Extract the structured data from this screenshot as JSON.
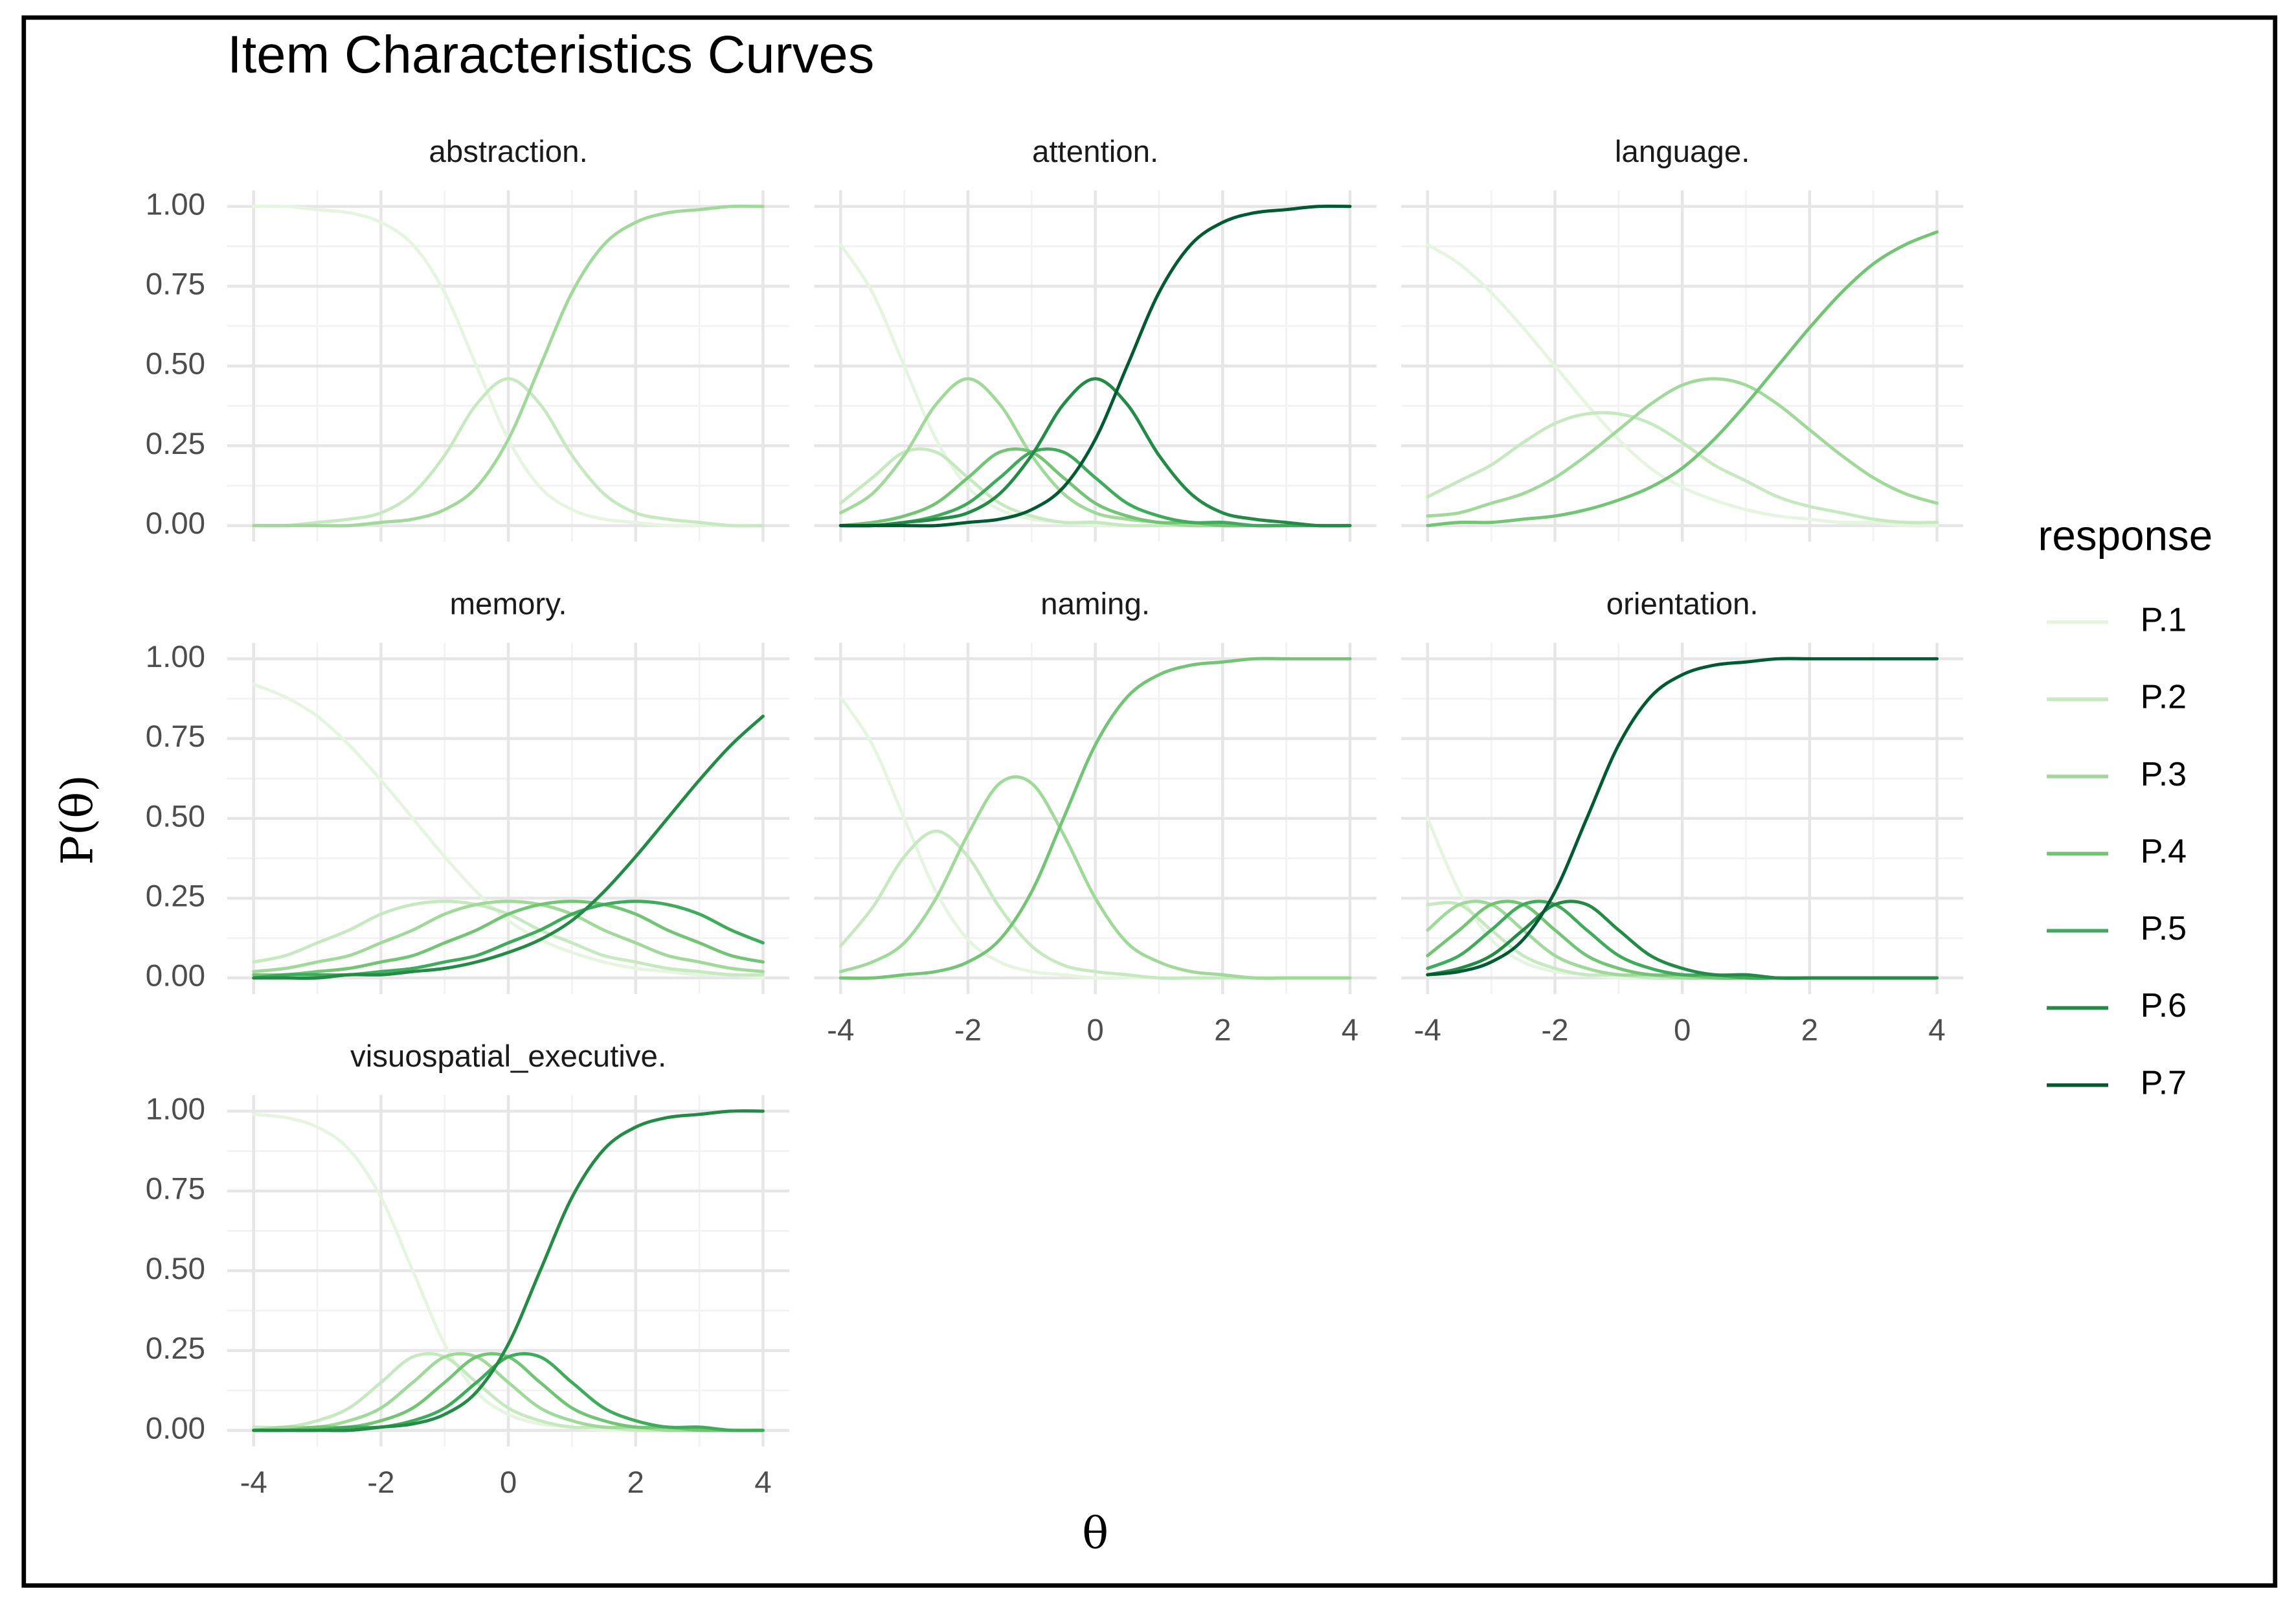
{
  "chart_data": {
    "type": "line",
    "title": "Item Characteristics Curves",
    "x_label": "θ",
    "y_label": "P(θ)",
    "legend_title": "response",
    "grid": true,
    "x": [
      -4,
      -3.5,
      -3,
      -2.5,
      -2,
      -1.5,
      -1,
      -0.5,
      0,
      0.5,
      1,
      1.5,
      2,
      2.5,
      3,
      3.5,
      4
    ],
    "xlim": [
      -4,
      4
    ],
    "xticks": [
      -4,
      -2,
      0,
      2,
      4
    ],
    "ylim": [
      0,
      1
    ],
    "yticks": [
      {
        "value": 0,
        "label": "0.00"
      },
      {
        "value": 0.25,
        "label": "0.25"
      },
      {
        "value": 0.5,
        "label": "0.50"
      },
      {
        "value": 0.75,
        "label": "0.75"
      },
      {
        "value": 1,
        "label": "1.00"
      }
    ],
    "panels": [
      {
        "title": "abstraction.",
        "series": [
          {
            "name": "P.1",
            "color": "#e5f5e0",
            "values": [
              1,
              1,
              0.99,
              0.98,
              0.95,
              0.88,
              0.73,
              0.5,
              0.27,
              0.12,
              0.05,
              0.02,
              0.01,
              0,
              0,
              0,
              0
            ]
          },
          {
            "name": "P.2",
            "color": "#c7e9c0",
            "values": [
              0,
              0,
              0.01,
              0.02,
              0.04,
              0.1,
              0.22,
              0.38,
              0.46,
              0.38,
              0.22,
              0.1,
              0.04,
              0.02,
              0.01,
              0,
              0
            ]
          },
          {
            "name": "P.3",
            "color": "#a1d99b",
            "values": [
              0,
              0,
              0,
              0,
              0.01,
              0.02,
              0.05,
              0.12,
              0.27,
              0.5,
              0.73,
              0.88,
              0.95,
              0.98,
              0.99,
              1,
              1
            ]
          }
        ]
      },
      {
        "title": "attention.",
        "series": [
          {
            "name": "P.1",
            "color": "#e5f5e0",
            "values": [
              0.88,
              0.73,
              0.5,
              0.27,
              0.12,
              0.05,
              0.02,
              0.01,
              0,
              0,
              0,
              0,
              0,
              0,
              0,
              0,
              0
            ]
          },
          {
            "name": "P.2",
            "color": "#c7e9c0",
            "values": [
              0.07,
              0.15,
              0.23,
              0.23,
              0.15,
              0.07,
              0.03,
              0.01,
              0.01,
              0,
              0,
              0,
              0,
              0,
              0,
              0,
              0
            ]
          },
          {
            "name": "P.3",
            "color": "#a1d99b",
            "values": [
              0.04,
              0.1,
              0.22,
              0.38,
              0.46,
              0.38,
              0.22,
              0.1,
              0.04,
              0.02,
              0.01,
              0,
              0,
              0,
              0,
              0,
              0
            ]
          },
          {
            "name": "P.4",
            "color": "#74c476",
            "values": [
              0,
              0.01,
              0.03,
              0.07,
              0.15,
              0.23,
              0.23,
              0.15,
              0.07,
              0.03,
              0.01,
              0.01,
              0,
              0,
              0,
              0,
              0
            ]
          },
          {
            "name": "P.5",
            "color": "#41ab5d",
            "values": [
              0,
              0,
              0.01,
              0.03,
              0.07,
              0.15,
              0.23,
              0.23,
              0.15,
              0.07,
              0.03,
              0.01,
              0.01,
              0,
              0,
              0,
              0
            ]
          },
          {
            "name": "P.6",
            "color": "#238b45",
            "values": [
              0,
              0,
              0.01,
              0.02,
              0.04,
              0.1,
              0.22,
              0.38,
              0.46,
              0.38,
              0.22,
              0.1,
              0.04,
              0.02,
              0.01,
              0,
              0
            ]
          },
          {
            "name": "P.7",
            "color": "#005a32",
            "values": [
              0,
              0,
              0,
              0,
              0.01,
              0.02,
              0.05,
              0.12,
              0.27,
              0.5,
              0.73,
              0.88,
              0.95,
              0.98,
              0.99,
              1,
              1
            ]
          }
        ]
      },
      {
        "title": "language.",
        "series": [
          {
            "name": "P.1",
            "color": "#e5f5e0",
            "values": [
              0.88,
              0.82,
              0.73,
              0.62,
              0.5,
              0.38,
              0.27,
              0.18,
              0.12,
              0.08,
              0.05,
              0.03,
              0.02,
              0.01,
              0.01,
              0,
              0
            ]
          },
          {
            "name": "P.2",
            "color": "#c7e9c0",
            "values": [
              0.09,
              0.14,
              0.19,
              0.26,
              0.32,
              0.35,
              0.35,
              0.32,
              0.26,
              0.19,
              0.14,
              0.09,
              0.06,
              0.04,
              0.02,
              0.01,
              0.01
            ]
          },
          {
            "name": "P.3",
            "color": "#a1d99b",
            "values": [
              0.03,
              0.04,
              0.07,
              0.1,
              0.15,
              0.22,
              0.3,
              0.38,
              0.44,
              0.46,
              0.44,
              0.38,
              0.3,
              0.22,
              0.15,
              0.1,
              0.07
            ]
          },
          {
            "name": "P.4",
            "color": "#74c476",
            "values": [
              0,
              0.01,
              0.01,
              0.02,
              0.03,
              0.05,
              0.08,
              0.12,
              0.18,
              0.27,
              0.38,
              0.5,
              0.62,
              0.73,
              0.82,
              0.88,
              0.92
            ]
          }
        ]
      },
      {
        "title": "memory.",
        "series": [
          {
            "name": "P.1",
            "color": "#e5f5e0",
            "values": [
              0.92,
              0.88,
              0.82,
              0.73,
              0.62,
              0.5,
              0.38,
              0.27,
              0.18,
              0.12,
              0.08,
              0.05,
              0.03,
              0.02,
              0.01,
              0.01,
              0
            ]
          },
          {
            "name": "P.2",
            "color": "#c7e9c0",
            "values": [
              0.05,
              0.07,
              0.11,
              0.15,
              0.2,
              0.23,
              0.24,
              0.23,
              0.2,
              0.15,
              0.11,
              0.07,
              0.05,
              0.03,
              0.02,
              0.01,
              0.01
            ]
          },
          {
            "name": "P.3",
            "color": "#a1d99b",
            "values": [
              0.02,
              0.03,
              0.05,
              0.07,
              0.11,
              0.15,
              0.2,
              0.23,
              0.24,
              0.23,
              0.2,
              0.15,
              0.11,
              0.07,
              0.05,
              0.03,
              0.02
            ]
          },
          {
            "name": "P.4",
            "color": "#74c476",
            "values": [
              0.01,
              0.01,
              0.02,
              0.03,
              0.05,
              0.07,
              0.11,
              0.15,
              0.2,
              0.23,
              0.24,
              0.23,
              0.2,
              0.15,
              0.11,
              0.07,
              0.05
            ]
          },
          {
            "name": "P.5",
            "color": "#41ab5d",
            "values": [
              0,
              0.01,
              0.01,
              0.01,
              0.02,
              0.03,
              0.05,
              0.07,
              0.11,
              0.15,
              0.2,
              0.23,
              0.24,
              0.23,
              0.2,
              0.15,
              0.11
            ]
          },
          {
            "name": "P.6",
            "color": "#238b45",
            "values": [
              0,
              0,
              0,
              0.01,
              0.01,
              0.02,
              0.03,
              0.05,
              0.08,
              0.12,
              0.18,
              0.27,
              0.38,
              0.5,
              0.62,
              0.73,
              0.82
            ]
          }
        ]
      },
      {
        "title": "naming.",
        "series": [
          {
            "name": "P.1",
            "color": "#e5f5e0",
            "values": [
              0.88,
              0.73,
              0.5,
              0.27,
              0.12,
              0.05,
              0.02,
              0.01,
              0,
              0,
              0,
              0,
              0,
              0,
              0,
              0,
              0
            ]
          },
          {
            "name": "P.2",
            "color": "#c7e9c0",
            "values": [
              0.1,
              0.22,
              0.38,
              0.46,
              0.38,
              0.22,
              0.1,
              0.04,
              0.02,
              0.01,
              0,
              0,
              0,
              0,
              0,
              0,
              0
            ]
          },
          {
            "name": "P.3",
            "color": "#a1d99b",
            "values": [
              0.02,
              0.05,
              0.11,
              0.25,
              0.45,
              0.61,
              0.61,
              0.45,
              0.25,
              0.11,
              0.05,
              0.02,
              0.01,
              0,
              0,
              0,
              0
            ]
          },
          {
            "name": "P.4",
            "color": "#74c476",
            "values": [
              0,
              0,
              0.01,
              0.02,
              0.05,
              0.12,
              0.27,
              0.5,
              0.73,
              0.88,
              0.95,
              0.98,
              0.99,
              1,
              1,
              1,
              1
            ]
          }
        ]
      },
      {
        "title": "orientation.",
        "series": [
          {
            "name": "P.1",
            "color": "#e5f5e0",
            "values": [
              0.5,
              0.27,
              0.12,
              0.05,
              0.02,
              0.01,
              0,
              0,
              0,
              0,
              0,
              0,
              0,
              0,
              0,
              0,
              0
            ]
          },
          {
            "name": "P.2",
            "color": "#c7e9c0",
            "values": [
              0.23,
              0.23,
              0.15,
              0.07,
              0.03,
              0.01,
              0.01,
              0,
              0,
              0,
              0,
              0,
              0,
              0,
              0,
              0,
              0
            ]
          },
          {
            "name": "P.3",
            "color": "#a1d99b",
            "values": [
              0.15,
              0.23,
              0.23,
              0.15,
              0.07,
              0.03,
              0.01,
              0.01,
              0,
              0,
              0,
              0,
              0,
              0,
              0,
              0,
              0
            ]
          },
          {
            "name": "P.4",
            "color": "#74c476",
            "values": [
              0.07,
              0.15,
              0.23,
              0.23,
              0.15,
              0.07,
              0.03,
              0.01,
              0.01,
              0,
              0,
              0,
              0,
              0,
              0,
              0,
              0
            ]
          },
          {
            "name": "P.5",
            "color": "#41ab5d",
            "values": [
              0.03,
              0.07,
              0.15,
              0.23,
              0.23,
              0.15,
              0.07,
              0.03,
              0.01,
              0.01,
              0,
              0,
              0,
              0,
              0,
              0,
              0
            ]
          },
          {
            "name": "P.6",
            "color": "#238b45",
            "values": [
              0.01,
              0.03,
              0.07,
              0.15,
              0.23,
              0.23,
              0.15,
              0.07,
              0.03,
              0.01,
              0.01,
              0,
              0,
              0,
              0,
              0,
              0
            ]
          },
          {
            "name": "P.7",
            "color": "#005a32",
            "values": [
              0.01,
              0.02,
              0.05,
              0.12,
              0.27,
              0.5,
              0.73,
              0.88,
              0.95,
              0.98,
              0.99,
              1,
              1,
              1,
              1,
              1,
              1
            ]
          }
        ]
      },
      {
        "title": "visuospatial_executive.",
        "series": [
          {
            "name": "P.1",
            "color": "#e5f5e0",
            "values": [
              0.99,
              0.98,
              0.95,
              0.88,
              0.73,
              0.5,
              0.27,
              0.12,
              0.05,
              0.02,
              0.01,
              0,
              0,
              0,
              0,
              0,
              0
            ]
          },
          {
            "name": "P.2",
            "color": "#c7e9c0",
            "values": [
              0.01,
              0.01,
              0.03,
              0.07,
              0.15,
              0.23,
              0.23,
              0.15,
              0.07,
              0.03,
              0.01,
              0.01,
              0,
              0,
              0,
              0,
              0
            ]
          },
          {
            "name": "P.3",
            "color": "#a1d99b",
            "values": [
              0,
              0.01,
              0.01,
              0.03,
              0.07,
              0.15,
              0.23,
              0.23,
              0.15,
              0.07,
              0.03,
              0.01,
              0.01,
              0,
              0,
              0,
              0
            ]
          },
          {
            "name": "P.4",
            "color": "#74c476",
            "values": [
              0,
              0,
              0.01,
              0.01,
              0.03,
              0.07,
              0.15,
              0.23,
              0.23,
              0.15,
              0.07,
              0.03,
              0.01,
              0.01,
              0,
              0,
              0
            ]
          },
          {
            "name": "P.5",
            "color": "#41ab5d",
            "values": [
              0,
              0,
              0,
              0.01,
              0.01,
              0.03,
              0.07,
              0.15,
              0.23,
              0.23,
              0.15,
              0.07,
              0.03,
              0.01,
              0.01,
              0,
              0
            ]
          },
          {
            "name": "P.6",
            "color": "#238b45",
            "values": [
              0,
              0,
              0,
              0,
              0.01,
              0.02,
              0.05,
              0.12,
              0.27,
              0.5,
              0.73,
              0.88,
              0.95,
              0.98,
              0.99,
              1,
              1
            ]
          }
        ]
      }
    ]
  }
}
